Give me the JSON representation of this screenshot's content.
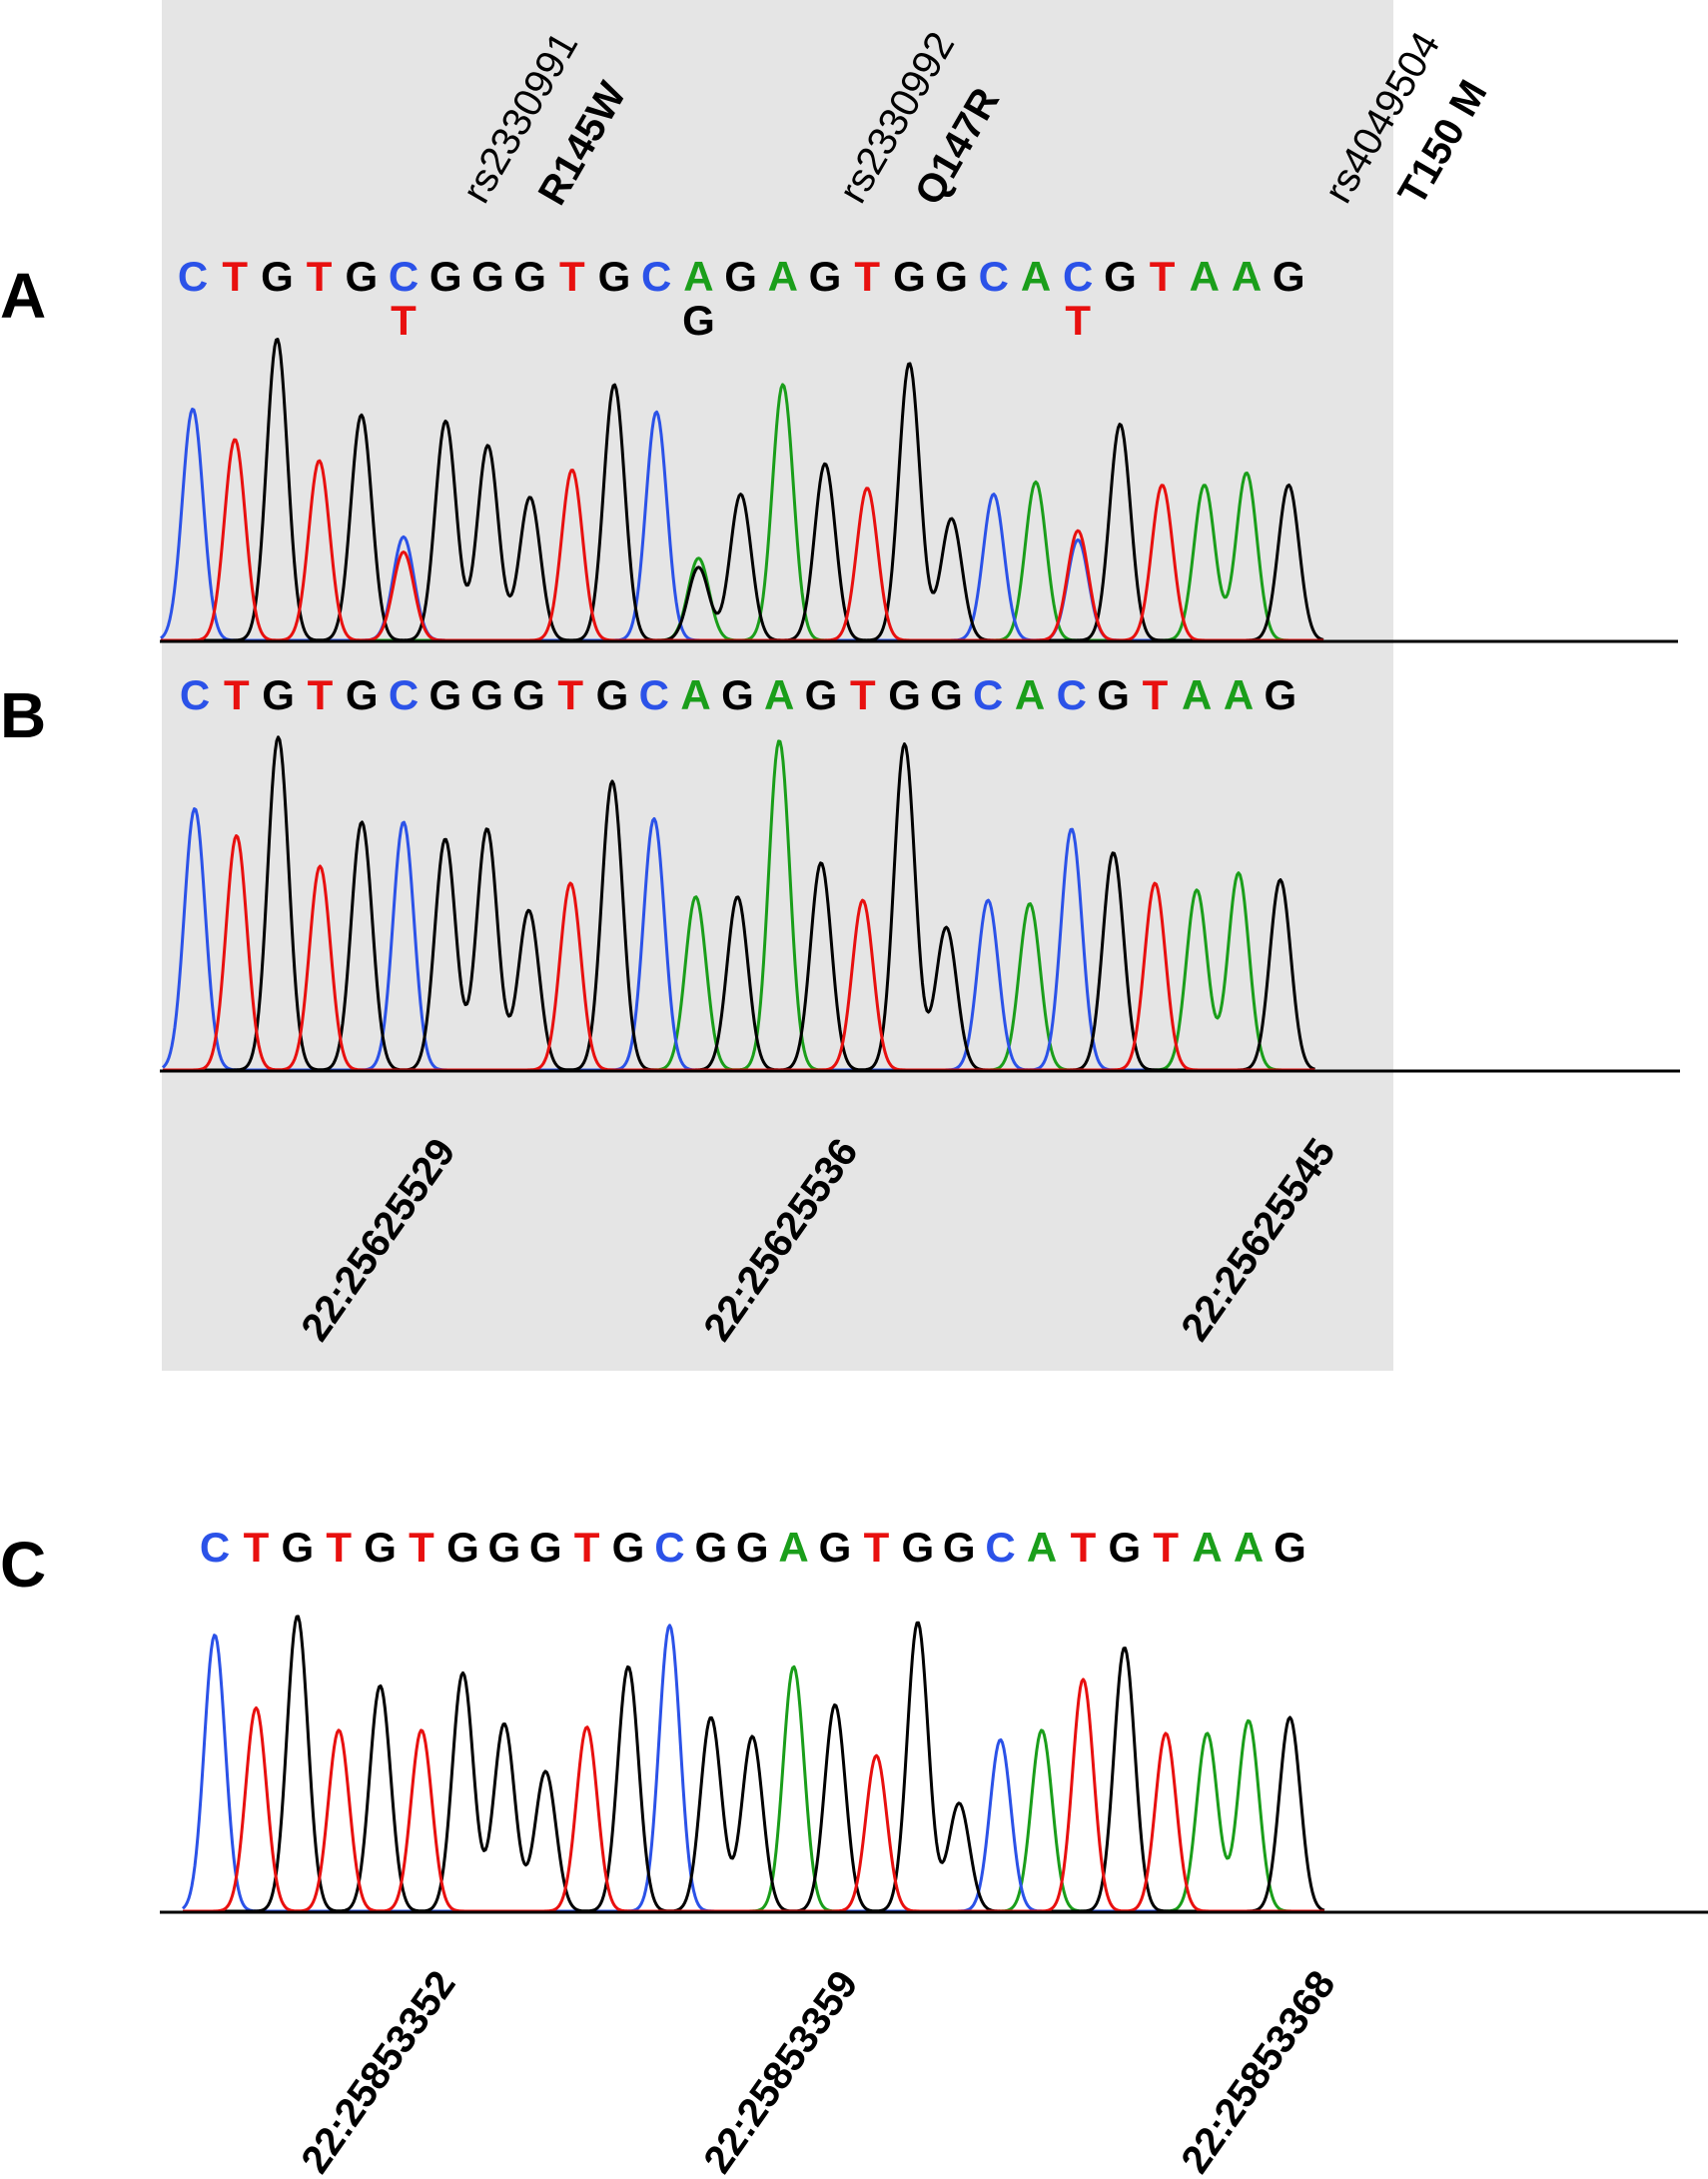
{
  "panels": [
    {
      "id": "A",
      "label": "A",
      "sequence": [
        "C",
        "T",
        "G",
        "T",
        "G",
        "C",
        "G",
        "G",
        "G",
        "T",
        "G",
        "C",
        "A",
        "G",
        "A",
        "G",
        "T",
        "G",
        "G",
        "C",
        "A",
        "C",
        "G",
        "T",
        "A",
        "A",
        "G"
      ],
      "heights": [
        0.76,
        0.66,
        0.99,
        0.59,
        0.74,
        0.34,
        0.72,
        0.64,
        0.47,
        0.56,
        0.84,
        0.75,
        0.27,
        0.48,
        0.84,
        0.58,
        0.5,
        0.91,
        0.4,
        0.48,
        0.52,
        0.33,
        0.71,
        0.51,
        0.51,
        0.55,
        0.51
      ],
      "secondary": [
        {
          "index": 5,
          "base": "T",
          "height": 0.29
        },
        {
          "index": 12,
          "base": "G",
          "height": 0.24
        },
        {
          "index": 21,
          "base": "T",
          "height": 0.36
        }
      ],
      "variants": [
        {
          "id": "rs2330991",
          "change": "R145W"
        },
        {
          "id": "rs2330992",
          "change": "Q147R"
        },
        {
          "id": "rs4049504",
          "change": "T150 M"
        }
      ]
    },
    {
      "id": "B",
      "label": "B",
      "sequence": [
        "C",
        "T",
        "G",
        "T",
        "G",
        "C",
        "G",
        "G",
        "G",
        "T",
        "G",
        "C",
        "A",
        "G",
        "A",
        "G",
        "T",
        "G",
        "G",
        "C",
        "A",
        "C",
        "G",
        "T",
        "A",
        "A",
        "G"
      ],
      "heights": [
        0.77,
        0.69,
        0.98,
        0.6,
        0.73,
        0.73,
        0.68,
        0.71,
        0.47,
        0.55,
        0.85,
        0.74,
        0.51,
        0.51,
        0.97,
        0.61,
        0.5,
        0.96,
        0.42,
        0.5,
        0.49,
        0.71,
        0.64,
        0.55,
        0.53,
        0.58,
        0.56
      ],
      "positions": [
        "22:25625529",
        "22:25625536",
        "22:25625545"
      ]
    },
    {
      "id": "C",
      "label": "C",
      "sequence": [
        "C",
        "T",
        "G",
        "T",
        "G",
        "T",
        "G",
        "G",
        "G",
        "T",
        "G",
        "C",
        "G",
        "G",
        "A",
        "G",
        "T",
        "G",
        "G",
        "C",
        "A",
        "T",
        "G",
        "T",
        "A",
        "A",
        "G"
      ],
      "heights": [
        0.87,
        0.64,
        0.93,
        0.57,
        0.71,
        0.57,
        0.75,
        0.59,
        0.44,
        0.58,
        0.77,
        0.9,
        0.61,
        0.55,
        0.77,
        0.65,
        0.49,
        0.91,
        0.34,
        0.54,
        0.57,
        0.73,
        0.83,
        0.56,
        0.56,
        0.6,
        0.61
      ],
      "positions": [
        "22:25853352",
        "22:25853359",
        "22:25853368"
      ]
    }
  ],
  "base_colors": {
    "A": "#1a9e1a",
    "C": "#2b52e8",
    "G": "#000000",
    "T": "#e8100f"
  },
  "highlight_color": "#e5e5e5"
}
